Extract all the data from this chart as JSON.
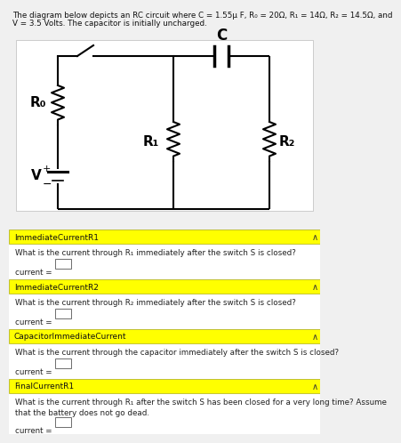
{
  "title_line1": "The diagram below depicts an RC circuit where C = 1.55μ F, R₀ = 20Ω, R₁ = 14Ω, R₂ = 14.5Ω, and",
  "title_line2": "V = 3.5 Volts. The capacitor is initially uncharged.",
  "bg_color": "#f0f0f0",
  "circuit_bg": "#ffffff",
  "yellow_bar_color": "#ffff00",
  "sections": [
    {
      "label": "ImmediateCurrentR1",
      "question": "What is the current through R₁ immediately after the switch S is closed?",
      "multiline": false
    },
    {
      "label": "ImmediateCurrentR2",
      "question": "What is the current through R₂ immediately after the switch S is closed?",
      "multiline": false
    },
    {
      "label": "CapacitorImmediateCurrent",
      "question": "What is the current through the capacitor immediately after the switch S is closed?",
      "multiline": false
    },
    {
      "label": "FinalCurrentR1",
      "question": "What is the current through R₁ after the switch S has been closed for a very long time? Assume\nthat the battery does not go dead.",
      "multiline": true
    }
  ]
}
